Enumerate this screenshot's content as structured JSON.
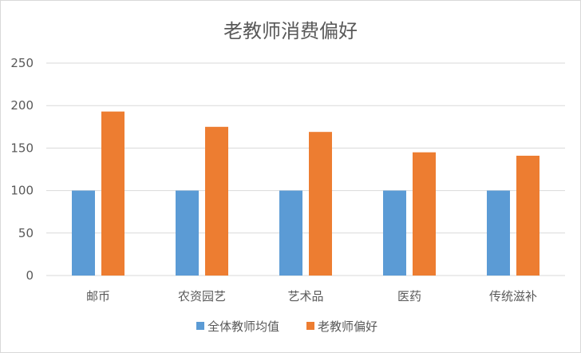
{
  "chart_data": {
    "type": "bar",
    "title": "老教师消费偏好",
    "categories": [
      "邮币",
      "农资园艺",
      "艺术品",
      "医药",
      "传统滋补"
    ],
    "series": [
      {
        "name": "全体教师均值",
        "values": [
          100,
          100,
          100,
          100,
          100
        ],
        "color": "#5b9bd5"
      },
      {
        "name": "老教师偏好",
        "values": [
          193,
          175,
          169,
          145,
          141
        ],
        "color": "#ed7d31"
      }
    ],
    "ylim": [
      0,
      250
    ],
    "yticks": [
      "0",
      "50",
      "100",
      "150",
      "200",
      "250"
    ],
    "grid": true,
    "legend_position": "bottom",
    "xlabel": "",
    "ylabel": ""
  }
}
